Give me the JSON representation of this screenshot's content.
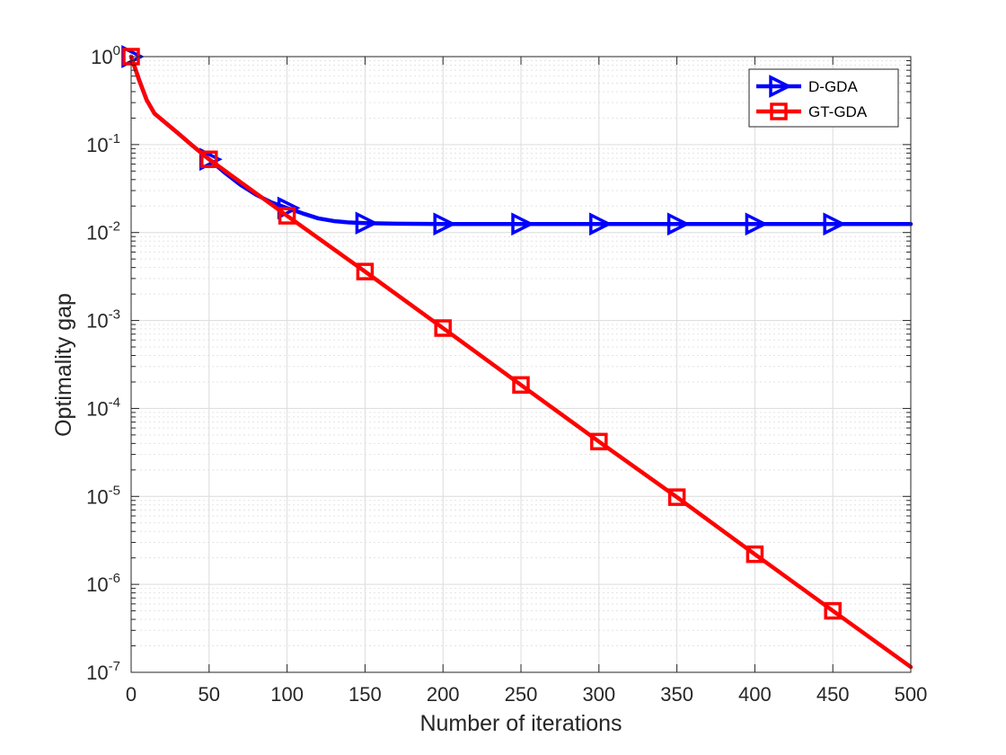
{
  "chart_data": {
    "type": "line",
    "title": "",
    "xlabel": "Number of iterations",
    "ylabel": "Optimality gap",
    "xlim": [
      0,
      500
    ],
    "ylim": [
      1e-07,
      1
    ],
    "yscale": "log",
    "grid": "on (major and minor)",
    "legend_position": "top-right",
    "x_ticks": [
      0,
      50,
      100,
      150,
      200,
      250,
      300,
      350,
      400,
      450,
      500
    ],
    "y_ticks": [
      {
        "value": 1e-07,
        "base": "10",
        "exp": "-7"
      },
      {
        "value": 1e-06,
        "base": "10",
        "exp": "-6"
      },
      {
        "value": 1e-05,
        "base": "10",
        "exp": "-5"
      },
      {
        "value": 0.0001,
        "base": "10",
        "exp": "-4"
      },
      {
        "value": 0.001,
        "base": "10",
        "exp": "-3"
      },
      {
        "value": 0.01,
        "base": "10",
        "exp": "-2"
      },
      {
        "value": 0.1,
        "base": "10",
        "exp": "-1"
      },
      {
        "value": 1,
        "base": "10",
        "exp": "0"
      }
    ],
    "series": [
      {
        "name": "D-GDA",
        "color": "#0000ff",
        "marker": "triangle-right",
        "x": [
          0,
          5,
          10,
          15,
          20,
          30,
          40,
          50,
          60,
          70,
          80,
          90,
          100,
          110,
          120,
          130,
          140,
          150,
          170,
          200,
          250,
          300,
          350,
          400,
          450,
          500
        ],
        "y": [
          1.0,
          0.55,
          0.32,
          0.225,
          0.19,
          0.135,
          0.095,
          0.068,
          0.048,
          0.035,
          0.027,
          0.022,
          0.019,
          0.0165,
          0.0145,
          0.0135,
          0.013,
          0.0128,
          0.0126,
          0.0125,
          0.0125,
          0.0125,
          0.0125,
          0.0125,
          0.0125,
          0.0125
        ],
        "marker_x": [
          0,
          50,
          100,
          150,
          200,
          250,
          300,
          350,
          400,
          450
        ]
      },
      {
        "name": "GT-GDA",
        "color": "#ff0000",
        "marker": "square",
        "x": [
          0,
          5,
          10,
          15,
          20,
          30,
          40,
          50,
          100,
          150,
          200,
          250,
          300,
          350,
          400,
          450,
          500
        ],
        "y": [
          1.0,
          0.55,
          0.32,
          0.225,
          0.19,
          0.135,
          0.095,
          0.068,
          0.0155,
          0.0036,
          0.00082,
          0.000185,
          4.2e-05,
          9.8e-06,
          2.2e-06,
          5e-07,
          1.15e-07
        ],
        "marker_x": [
          0,
          50,
          100,
          150,
          200,
          250,
          300,
          350,
          400,
          450
        ]
      }
    ]
  }
}
